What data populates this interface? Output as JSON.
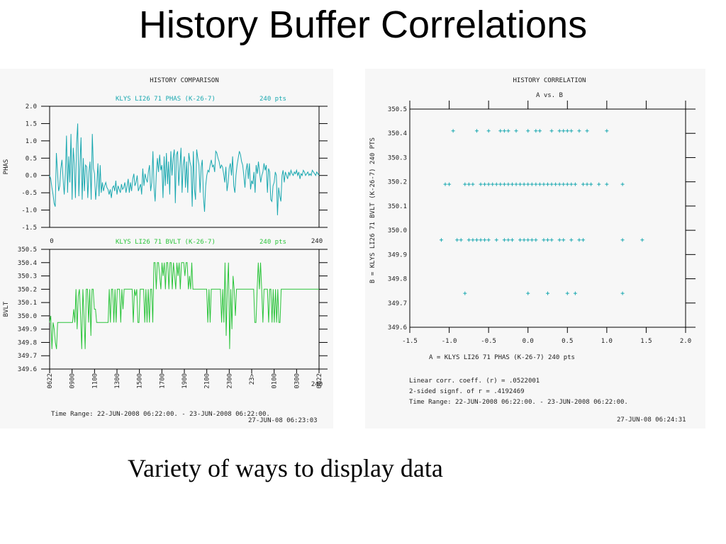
{
  "title": "History Buffer Correlations",
  "caption": "Variety of ways to display data",
  "colors": {
    "phase_trace": "#1aa8b0",
    "bvlt_trace": "#2bc43b",
    "scatter_marks": "#1aa8b0",
    "axes": "#000000",
    "panel_bg": "#f7f7f7"
  },
  "left_panel": {
    "heading": "HISTORY COMPARISON",
    "top_series_label": "KLYS LI26 71 PHAS (K-26-7)",
    "top_pts": "240 pts",
    "bottom_series_label": "KLYS LI26 71 BVLT (K-26-7)",
    "bottom_pts": "240 pts",
    "top_x_start": "0",
    "top_x_end": "240",
    "bottom_x_end": "240",
    "time_ticks": [
      "0622",
      "0900",
      "1100",
      "1300",
      "1500",
      "1700",
      "1900",
      "2100",
      "2300",
      "23>",
      "0100",
      "0300",
      "0622"
    ],
    "time_range": "Time Range: 22-JUN-2008 06:22:00. - 23-JUN-2008 06:22:00.",
    "timestamp": "27-JUN-08 06:23:03"
  },
  "right_panel": {
    "heading": "HISTORY CORRELATION",
    "subheading": "A vs. B",
    "x_label": "A = KLYS LI26 71 PHAS (K-26-7) 240 pts",
    "y_label": "B = KLYS LI26 71 BVLT (K-26-7) 240 PTS",
    "stats": [
      "Linear corr. coeff. (r) = .0522001",
      "2-sided signf. of r = .4192469",
      "Time Range: 22-JUN-2008 06:22:00. - 23-JUN-2008 06:22:00."
    ],
    "timestamp": "27-JUN-08 06:24:31"
  },
  "chart_data": [
    {
      "type": "line",
      "series": [
        {
          "name": "PHAS",
          "x_range": [
            0,
            240
          ],
          "values": [
            0.0,
            -0.1,
            -0.35,
            -0.55,
            -0.8,
            -0.9,
            0.65,
            0.1,
            -0.45,
            -0.3,
            0.2,
            0.45,
            -0.1,
            -0.55,
            0.05,
            1.15,
            -0.5,
            0.55,
            -0.2,
            1.2,
            -0.7,
            0.8,
            0.35,
            -0.65,
            0.9,
            1.5,
            -0.6,
            0.35,
            1.1,
            -0.7,
            0.5,
            -0.45,
            0.3,
            0.25,
            -0.65,
            0.1,
            0.4,
            -0.7,
            1.2,
            0.2,
            0.05,
            -0.7,
            -0.3,
            0.35,
            -0.6,
            0.3,
            -0.5,
            -0.2,
            -0.45,
            -0.3,
            -0.2,
            -0.35,
            -0.4,
            -0.55,
            -0.4,
            -0.65,
            -0.35,
            -0.3,
            -0.45,
            -0.15,
            -0.55,
            -0.3,
            -0.4,
            -0.5,
            -0.25,
            -0.4,
            -0.35,
            -0.2,
            -0.5,
            -0.3,
            -0.1,
            -0.5,
            -0.2,
            -0.45,
            -0.1,
            0.05,
            -0.3,
            -0.2,
            0.0,
            -0.45,
            -0.35,
            -0.25,
            -0.55,
            0.2,
            -0.3,
            0.05,
            -0.1,
            -0.2,
            0.1,
            0.3,
            -0.45,
            -0.2,
            0.7,
            -0.35,
            -0.75,
            0.0,
            0.5,
            0.1,
            0.6,
            0.15,
            0.3,
            -0.65,
            0.55,
            -0.3,
            0.65,
            -0.25,
            0.4,
            -0.55,
            0.7,
            0.0,
            0.5,
            0.75,
            -0.8,
            0.6,
            0.7,
            -0.3,
            0.25,
            0.8,
            -0.5,
            0.3,
            0.55,
            -0.35,
            0.4,
            -0.5,
            0.65,
            0.4,
            0.25,
            -0.9,
            0.7,
            -0.4,
            -0.7,
            0.75,
            0.5,
            0.3,
            -0.5,
            0.25,
            0.45,
            -0.6,
            -1.05,
            -0.3,
            0.0,
            0.15,
            0.1,
            0.3,
            0.45,
            0.25,
            0.3,
            0.1,
            0.7,
            0.65,
            0.5,
            0.4,
            0.2,
            0.3,
            0.25,
            0.05,
            -0.2,
            0.25,
            -0.45,
            -0.2,
            0.2,
            0.35,
            0.0,
            0.55,
            -0.3,
            -0.5,
            0.0,
            0.3,
            0.5,
            0.7,
            0.6,
            0.4,
            0.3,
            0.0,
            -0.35,
            0.15,
            0.35,
            -0.1,
            0.35,
            -0.4,
            -0.15,
            -0.25,
            0.1,
            -0.5,
            0.3,
            0.05,
            0.4,
            0.1,
            -0.2,
            0.0,
            0.1,
            0.35,
            0.15,
            0.3,
            -0.5,
            0.2,
            0.1,
            -0.7,
            -0.75,
            -0.3,
            -0.2,
            0.1,
            0.0,
            -1.15,
            -0.35,
            -0.6,
            -0.75,
            0.0,
            0.15,
            -0.2,
            0.1,
            0.0,
            -0.1,
            0.1,
            0.0,
            0.15,
            0.05,
            0.0,
            0.1,
            0.05,
            0.15,
            0.0,
            0.1,
            -0.1,
            0.05,
            0.0,
            0.15,
            0.1,
            0.0,
            0.05,
            0.1,
            0.0,
            0.05,
            0.0,
            0.15,
            0.1,
            0.05,
            0.0,
            0.1,
            0.05,
            0.0
          ]
        }
      ],
      "ylabel": "PHAS",
      "ylim": [
        -1.5,
        2.0
      ],
      "y_ticks": [
        "2.0",
        "1.5",
        "1.0",
        "0.5",
        "0.0",
        "-0.5",
        "-1.0",
        "-1.5"
      ]
    },
    {
      "type": "line",
      "series": [
        {
          "name": "BVLT",
          "x_range": [
            0,
            240
          ],
          "levels": [
            349.95,
            349.85,
            349.8,
            349.75,
            350.0,
            350.05,
            350.1,
            350.2
          ],
          "values": [
            349.95,
            350.0,
            349.75,
            349.95,
            349.9,
            349.8,
            349.75,
            349.95,
            349.95,
            349.95,
            349.95,
            349.95,
            349.95,
            349.95,
            349.95,
            349.95,
            349.95,
            349.95,
            349.95,
            349.95,
            349.95,
            350.05,
            349.95,
            350.2,
            349.9,
            350.15,
            350.2,
            350.0,
            349.75,
            350.2,
            350.0,
            349.75,
            350.2,
            350.2,
            349.95,
            350.2,
            349.85,
            350.2,
            350.2,
            350.05,
            350.05,
            349.95,
            349.95,
            349.95,
            349.95,
            349.95,
            349.95,
            349.95,
            349.95,
            349.95,
            349.95,
            349.95,
            350.2,
            349.95,
            350.2,
            350.2,
            349.95,
            350.2,
            349.95,
            350.2,
            350.2,
            350.2,
            349.95,
            350.2,
            350.05,
            350.2,
            350.2,
            350.2,
            350.2,
            350.2,
            350.2,
            350.2,
            350.2,
            349.95,
            350.2,
            350.15,
            350.2,
            349.95,
            349.95,
            350.2,
            350.2,
            350.2,
            350.2,
            349.95,
            350.2,
            349.95,
            350.2,
            349.95,
            350.2,
            350.2,
            349.95,
            350.4,
            350.4,
            350.2,
            350.4,
            350.4,
            350.3,
            350.2,
            350.4,
            350.3,
            350.4,
            350.2,
            350.4,
            350.4,
            350.2,
            350.4,
            350.4,
            350.2,
            350.4,
            350.3,
            350.2,
            350.4,
            350.3,
            350.4,
            350.2,
            350.4,
            350.4,
            350.4,
            350.3,
            350.4,
            350.4,
            350.2,
            350.3,
            350.2,
            350.4,
            350.2,
            350.2,
            350.2,
            350.2,
            350.2,
            350.2,
            350.2,
            350.2,
            350.2,
            350.2,
            350.2,
            350.2,
            350.2,
            349.95,
            350.2,
            349.95,
            350.2,
            350.2,
            350.2,
            350.2,
            350.2,
            350.2,
            350.2,
            350.2,
            350.2,
            349.95,
            350.2,
            349.95,
            350.4,
            349.85,
            350.2,
            350.4,
            349.75,
            350.2,
            349.9,
            350.3,
            350.2,
            350.0,
            350.2,
            350.2,
            350.2,
            350.2,
            350.2,
            350.2,
            350.2,
            350.2,
            350.2,
            350.2,
            350.2,
            350.2,
            350.2,
            350.2,
            350.2,
            350.2,
            349.95,
            349.95,
            350.2,
            350.4,
            350.2,
            350.4,
            350.2,
            349.95,
            350.2,
            350.2,
            350.2,
            350.2,
            349.95,
            350.2,
            350.2,
            349.95,
            350.2,
            349.95,
            350.2,
            349.95,
            350.2,
            349.95,
            349.95,
            350.2,
            350.2,
            350.2,
            350.2,
            350.2,
            350.2,
            350.2,
            350.2,
            350.2,
            350.2,
            350.2,
            350.2,
            350.2,
            350.2,
            350.2,
            350.2,
            350.2,
            350.2,
            350.2,
            350.2,
            350.2,
            350.2,
            350.2,
            350.2,
            350.2,
            350.2,
            350.2,
            350.2,
            350.2,
            350.2,
            350.2,
            350.2,
            350.2,
            350.2
          ]
        }
      ],
      "ylabel": "BVLT",
      "ylim": [
        349.6,
        350.5
      ],
      "y_ticks": [
        "350.5",
        "350.4",
        "350.3",
        "350.2",
        "350.1",
        "350.0",
        "349.9",
        "349.8",
        "349.7",
        "349.6"
      ]
    },
    {
      "type": "scatter",
      "xlabel": "A = KLYS LI26 71 PHAS (K-26-7) 240 pts",
      "ylabel": "B = KLYS LI26 71 BVLT (K-26-7) 240 PTS",
      "xlim": [
        -1.5,
        2.0
      ],
      "ylim": [
        349.6,
        350.5
      ],
      "x_ticks": [
        "-1.5",
        "-1.0",
        "-0.5",
        "0.0",
        "0.5",
        "1.0",
        "1.5",
        "2.0"
      ],
      "y_ticks": [
        "350.5",
        "350.4",
        "350.3",
        "350.2",
        "350.1",
        "350.0",
        "349.9",
        "349.8",
        "349.7",
        "349.6"
      ],
      "points": [
        [
          -0.95,
          350.41
        ],
        [
          -0.65,
          350.41
        ],
        [
          -0.5,
          350.41
        ],
        [
          -0.35,
          350.41
        ],
        [
          -0.3,
          350.41
        ],
        [
          -0.25,
          350.41
        ],
        [
          -0.15,
          350.41
        ],
        [
          0.0,
          350.41
        ],
        [
          0.1,
          350.41
        ],
        [
          0.15,
          350.41
        ],
        [
          0.3,
          350.41
        ],
        [
          0.4,
          350.41
        ],
        [
          0.45,
          350.41
        ],
        [
          0.5,
          350.41
        ],
        [
          0.55,
          350.41
        ],
        [
          0.65,
          350.41
        ],
        [
          0.75,
          350.41
        ],
        [
          1.0,
          350.41
        ],
        [
          -1.05,
          350.19
        ],
        [
          -1.0,
          350.19
        ],
        [
          -0.8,
          350.19
        ],
        [
          -0.75,
          350.19
        ],
        [
          -0.7,
          350.19
        ],
        [
          -0.6,
          350.19
        ],
        [
          -0.55,
          350.19
        ],
        [
          -0.5,
          350.19
        ],
        [
          -0.45,
          350.19
        ],
        [
          -0.4,
          350.19
        ],
        [
          -0.35,
          350.19
        ],
        [
          -0.3,
          350.19
        ],
        [
          -0.25,
          350.19
        ],
        [
          -0.2,
          350.19
        ],
        [
          -0.15,
          350.19
        ],
        [
          -0.1,
          350.19
        ],
        [
          -0.05,
          350.19
        ],
        [
          0.0,
          350.19
        ],
        [
          0.05,
          350.19
        ],
        [
          0.1,
          350.19
        ],
        [
          0.15,
          350.19
        ],
        [
          0.2,
          350.19
        ],
        [
          0.25,
          350.19
        ],
        [
          0.3,
          350.19
        ],
        [
          0.35,
          350.19
        ],
        [
          0.4,
          350.19
        ],
        [
          0.45,
          350.19
        ],
        [
          0.5,
          350.19
        ],
        [
          0.55,
          350.19
        ],
        [
          0.6,
          350.19
        ],
        [
          0.7,
          350.19
        ],
        [
          0.75,
          350.19
        ],
        [
          0.8,
          350.19
        ],
        [
          0.9,
          350.19
        ],
        [
          1.0,
          350.19
        ],
        [
          1.2,
          350.19
        ],
        [
          -1.1,
          349.96
        ],
        [
          -0.9,
          349.96
        ],
        [
          -0.85,
          349.96
        ],
        [
          -0.75,
          349.96
        ],
        [
          -0.7,
          349.96
        ],
        [
          -0.65,
          349.96
        ],
        [
          -0.6,
          349.96
        ],
        [
          -0.55,
          349.96
        ],
        [
          -0.5,
          349.96
        ],
        [
          -0.4,
          349.96
        ],
        [
          -0.3,
          349.96
        ],
        [
          -0.25,
          349.96
        ],
        [
          -0.2,
          349.96
        ],
        [
          -0.1,
          349.96
        ],
        [
          -0.05,
          349.96
        ],
        [
          0.0,
          349.96
        ],
        [
          0.05,
          349.96
        ],
        [
          0.1,
          349.96
        ],
        [
          0.2,
          349.96
        ],
        [
          0.25,
          349.96
        ],
        [
          0.3,
          349.96
        ],
        [
          0.4,
          349.96
        ],
        [
          0.45,
          349.96
        ],
        [
          0.55,
          349.96
        ],
        [
          0.65,
          349.96
        ],
        [
          0.7,
          349.96
        ],
        [
          1.2,
          349.96
        ],
        [
          1.45,
          349.96
        ],
        [
          -0.8,
          349.74
        ],
        [
          0.0,
          349.74
        ],
        [
          0.25,
          349.74
        ],
        [
          0.5,
          349.74
        ],
        [
          0.6,
          349.74
        ],
        [
          1.2,
          349.74
        ]
      ]
    }
  ]
}
